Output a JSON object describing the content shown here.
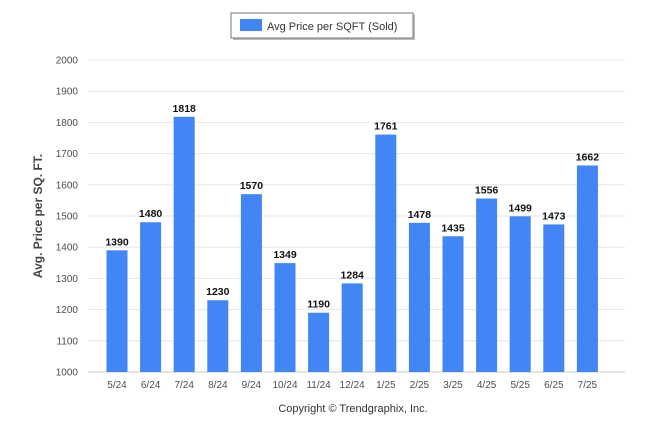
{
  "chart_data": {
    "type": "bar",
    "categories": [
      "5/24",
      "6/24",
      "7/24",
      "8/24",
      "9/24",
      "10/24",
      "11/24",
      "12/24",
      "1/25",
      "2/25",
      "3/25",
      "4/25",
      "5/25",
      "6/25",
      "7/25"
    ],
    "series": [
      {
        "name": "Avg Price per SQFT (Sold)",
        "values": [
          1390,
          1480,
          1818,
          1230,
          1570,
          1349,
          1190,
          1284,
          1761,
          1478,
          1435,
          1556,
          1499,
          1473,
          1662
        ]
      }
    ],
    "ylabel": "Avg. Price per SQ. FT.",
    "xlabel": "",
    "ylim": [
      1000,
      2000
    ],
    "yticks": [
      1000,
      1100,
      1200,
      1300,
      1400,
      1500,
      1600,
      1700,
      1800,
      1900,
      2000
    ],
    "grid": true,
    "legend_position": "top-center",
    "bar_color": "#4285f4"
  },
  "footer": {
    "copyright": "Copyright © Trendgraphix, Inc."
  }
}
